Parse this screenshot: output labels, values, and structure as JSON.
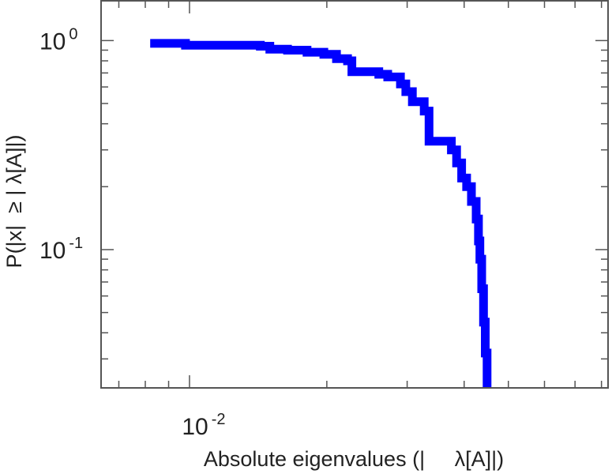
{
  "chart_data": {
    "type": "line",
    "title": "",
    "xlabel": "Absolute eigenvalues (|     λ[A]|)",
    "ylabel": "P(|x|  ≥ | λ[A]|)",
    "xscale": "log",
    "yscale": "log",
    "xlim": [
      0.0064,
      0.0827
    ],
    "ylim": [
      0.0218,
      1.55
    ],
    "x_tick_labels": [
      {
        "base": "10",
        "exp": "-2",
        "value": 0.01
      }
    ],
    "y_tick_labels": [
      {
        "base": "10",
        "exp": "0",
        "value": 1
      },
      {
        "base": "10",
        "exp": "-1",
        "value": 0.1
      }
    ],
    "grid": false,
    "legend": "none",
    "colors": {
      "series": "#0000ff",
      "axis": "#555555",
      "text": "#222222"
    },
    "series": [
      {
        "step": "post",
        "points": [
          [
            0.0082,
            0.97
          ],
          [
            0.0098,
            0.95
          ],
          [
            0.0143,
            0.94
          ],
          [
            0.015,
            0.91
          ],
          [
            0.0164,
            0.9
          ],
          [
            0.0181,
            0.88
          ],
          [
            0.0197,
            0.86
          ],
          [
            0.021,
            0.82
          ],
          [
            0.0222,
            0.8
          ],
          [
            0.0227,
            0.71
          ],
          [
            0.026,
            0.69
          ],
          [
            0.0272,
            0.67
          ],
          [
            0.029,
            0.62
          ],
          [
            0.0298,
            0.57
          ],
          [
            0.0308,
            0.51
          ],
          [
            0.0327,
            0.46
          ],
          [
            0.0335,
            0.33
          ],
          [
            0.0375,
            0.3
          ],
          [
            0.0385,
            0.26
          ],
          [
            0.0395,
            0.22
          ],
          [
            0.0405,
            0.2
          ],
          [
            0.0415,
            0.17
          ],
          [
            0.0425,
            0.14
          ],
          [
            0.043,
            0.11
          ],
          [
            0.0433,
            0.09
          ],
          [
            0.0437,
            0.065
          ],
          [
            0.0441,
            0.045
          ],
          [
            0.0445,
            0.032
          ],
          [
            0.0449,
            0.02
          ]
        ]
      }
    ]
  }
}
